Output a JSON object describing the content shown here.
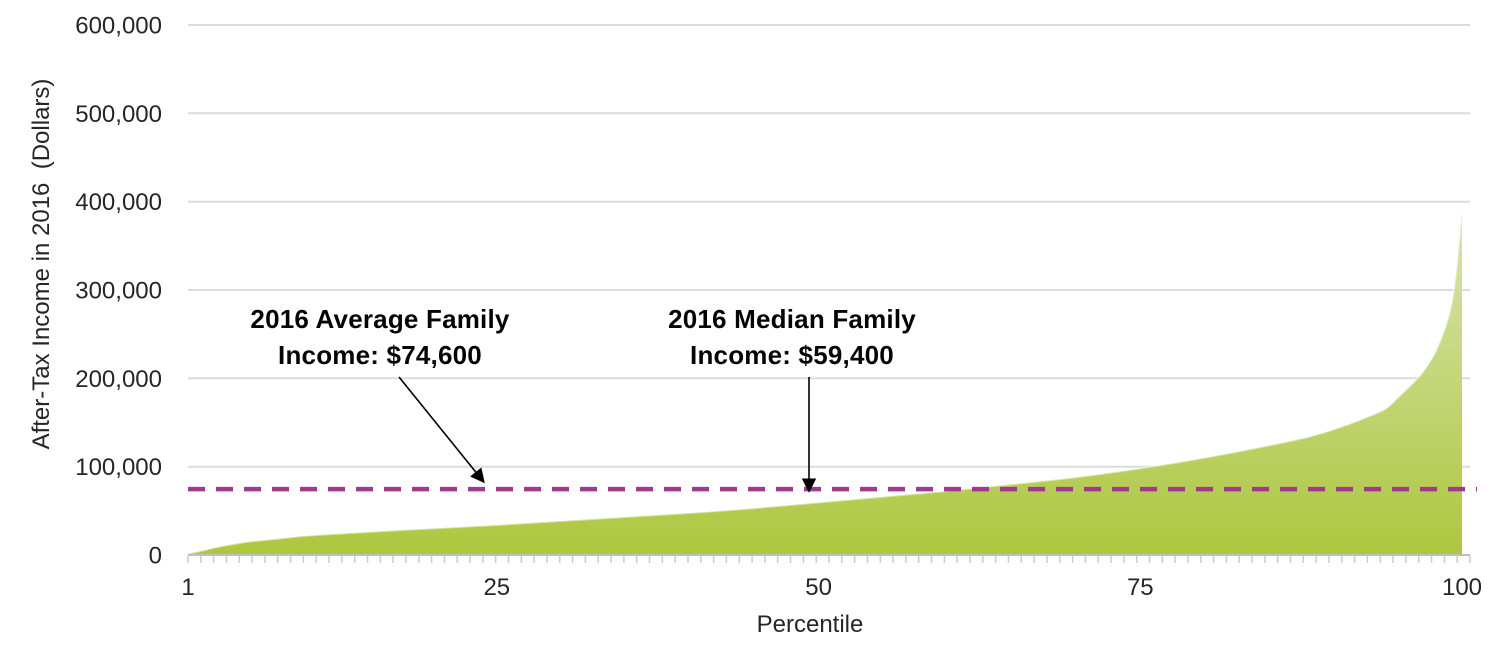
{
  "chart_data": {
    "type": "area",
    "title": "",
    "xlabel": "Percentile",
    "ylabel": "After-Tax Income in 2016  (Dollars)",
    "xlim": [
      1,
      100
    ],
    "ylim": [
      0,
      600000
    ],
    "grid": "horizontal-only",
    "legend": "none",
    "x_tick_values": [
      1,
      25,
      50,
      75,
      100
    ],
    "x_tick_labels": [
      "1",
      "25",
      "50",
      "75",
      "100"
    ],
    "minor_x_tick_interval": 1,
    "y_tick_values": [
      0,
      100000,
      200000,
      300000,
      400000,
      500000,
      600000
    ],
    "y_tick_labels": [
      "0",
      "100,000",
      "200,000",
      "300,000",
      "400,000",
      "500,000",
      "600,000"
    ],
    "series": [
      {
        "name": "after-tax-income-by-percentile",
        "type": "area",
        "x": [
          1,
          2,
          3,
          4,
          5,
          6,
          8,
          10,
          12,
          15,
          18,
          20,
          25,
          30,
          35,
          40,
          45,
          50,
          55,
          60,
          65,
          70,
          75,
          80,
          85,
          88,
          90,
          92,
          94,
          95,
          96,
          97,
          98,
          99,
          99.5,
          100
        ],
        "y": [
          1500,
          4500,
          8000,
          11000,
          13500,
          15500,
          18500,
          21500,
          23500,
          26000,
          28500,
          30000,
          34000,
          38500,
          43000,
          47500,
          53000,
          59400,
          66000,
          72500,
          80000,
          88000,
          98000,
          110000,
          124000,
          133500,
          142000,
          152500,
          165000,
          178000,
          192000,
          208000,
          232000,
          272000,
          315000,
          390000
        ]
      },
      {
        "name": "2016-average-family-income-line",
        "type": "dashed-horizontal-line",
        "value": 74600
      }
    ],
    "key_values": {
      "average_family_income_2016": 74600,
      "median_family_income_2016": 59400,
      "top_percentile_income_approx": 390000
    },
    "annotations": [
      {
        "id": "average",
        "lines": [
          "2016 Average Family",
          "Income: $74,600"
        ],
        "arrow_points_to": "dashed average income line"
      },
      {
        "id": "median",
        "lines": [
          "2016 Median Family",
          "Income: $59,400"
        ],
        "arrow_points_to": "income curve at 50th percentile"
      }
    ],
    "colors": {
      "area_gradient_top": "#ecf3dc",
      "area_gradient_mid": "#d7e5b0",
      "area_gradient_bottom": "#adc73e",
      "area_edge": "#ffffff",
      "average_line": "#a0398f",
      "gridline": "#dcdcdc",
      "axis_line": "#bfbfbf",
      "minor_tick": "#cccccc",
      "tick_text": "#262626",
      "annotation_text": "#050505",
      "arrow": "#000000"
    }
  }
}
